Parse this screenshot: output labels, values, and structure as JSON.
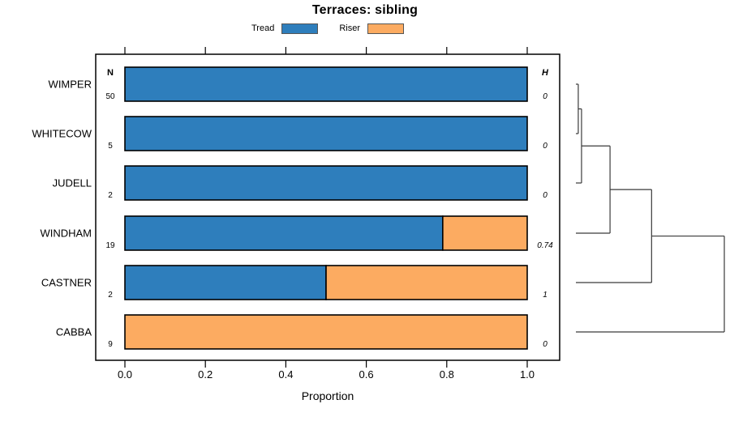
{
  "chart": {
    "title": "Terraces: sibling",
    "xlabel": "Proportion",
    "columns": {
      "n_header": "N",
      "h_header": "H"
    },
    "legend": [
      {
        "label": "Tread",
        "color": "#2e7ebc"
      },
      {
        "label": "Riser",
        "color": "#fcab61"
      }
    ]
  },
  "chart_data": {
    "type": "bar",
    "orientation": "horizontal",
    "stacked": true,
    "title": "Terraces: sibling",
    "xlabel": "Proportion",
    "xlim": [
      0,
      1
    ],
    "x_ticks": [
      0,
      0.2,
      0.4,
      0.6,
      0.8,
      1.0
    ],
    "x_tick_labels": [
      "0.0",
      "0.2",
      "0.4",
      "0.6",
      "0.8",
      "1.0"
    ],
    "legend_position": "top",
    "series_names": [
      "Tread",
      "Riser"
    ],
    "categories": [
      "WIMPER",
      "WHITECOW",
      "JUDELL",
      "WINDHAM",
      "CASTNER",
      "CABBA"
    ],
    "rows": [
      {
        "name": "WIMPER",
        "n": "50",
        "tread": 1.0,
        "riser": 0.0,
        "h": "0"
      },
      {
        "name": "WHITECOW",
        "n": "5",
        "tread": 1.0,
        "riser": 0.0,
        "h": "0"
      },
      {
        "name": "JUDELL",
        "n": "2",
        "tread": 1.0,
        "riser": 0.0,
        "h": "0"
      },
      {
        "name": "WINDHAM",
        "n": "19",
        "tread": 0.79,
        "riser": 0.21,
        "h": "0.74"
      },
      {
        "name": "CASTNER",
        "n": "2",
        "tread": 0.5,
        "riser": 0.5,
        "h": "1"
      },
      {
        "name": "CABBA",
        "n": "9",
        "tread": 0.0,
        "riser": 1.0,
        "h": "0"
      }
    ],
    "dendrogram": {
      "orientation": "right",
      "merges": [
        {
          "a": "WIMPER",
          "b": "WHITECOW",
          "height": 0.016
        },
        {
          "a": "merge0",
          "b": "JUDELL",
          "height": 0.038
        },
        {
          "a": "merge1",
          "b": "WINDHAM",
          "height": 0.23
        },
        {
          "a": "merge2",
          "b": "CASTNER",
          "height": 0.51
        },
        {
          "a": "merge3",
          "b": "CABBA",
          "height": 1.0
        }
      ]
    },
    "colors": {
      "tread": "#2e7ebc",
      "riser": "#fcab61",
      "bar_border": "#000000",
      "dendrogram_line": "#3a3a3a",
      "axis": "#000000"
    }
  }
}
